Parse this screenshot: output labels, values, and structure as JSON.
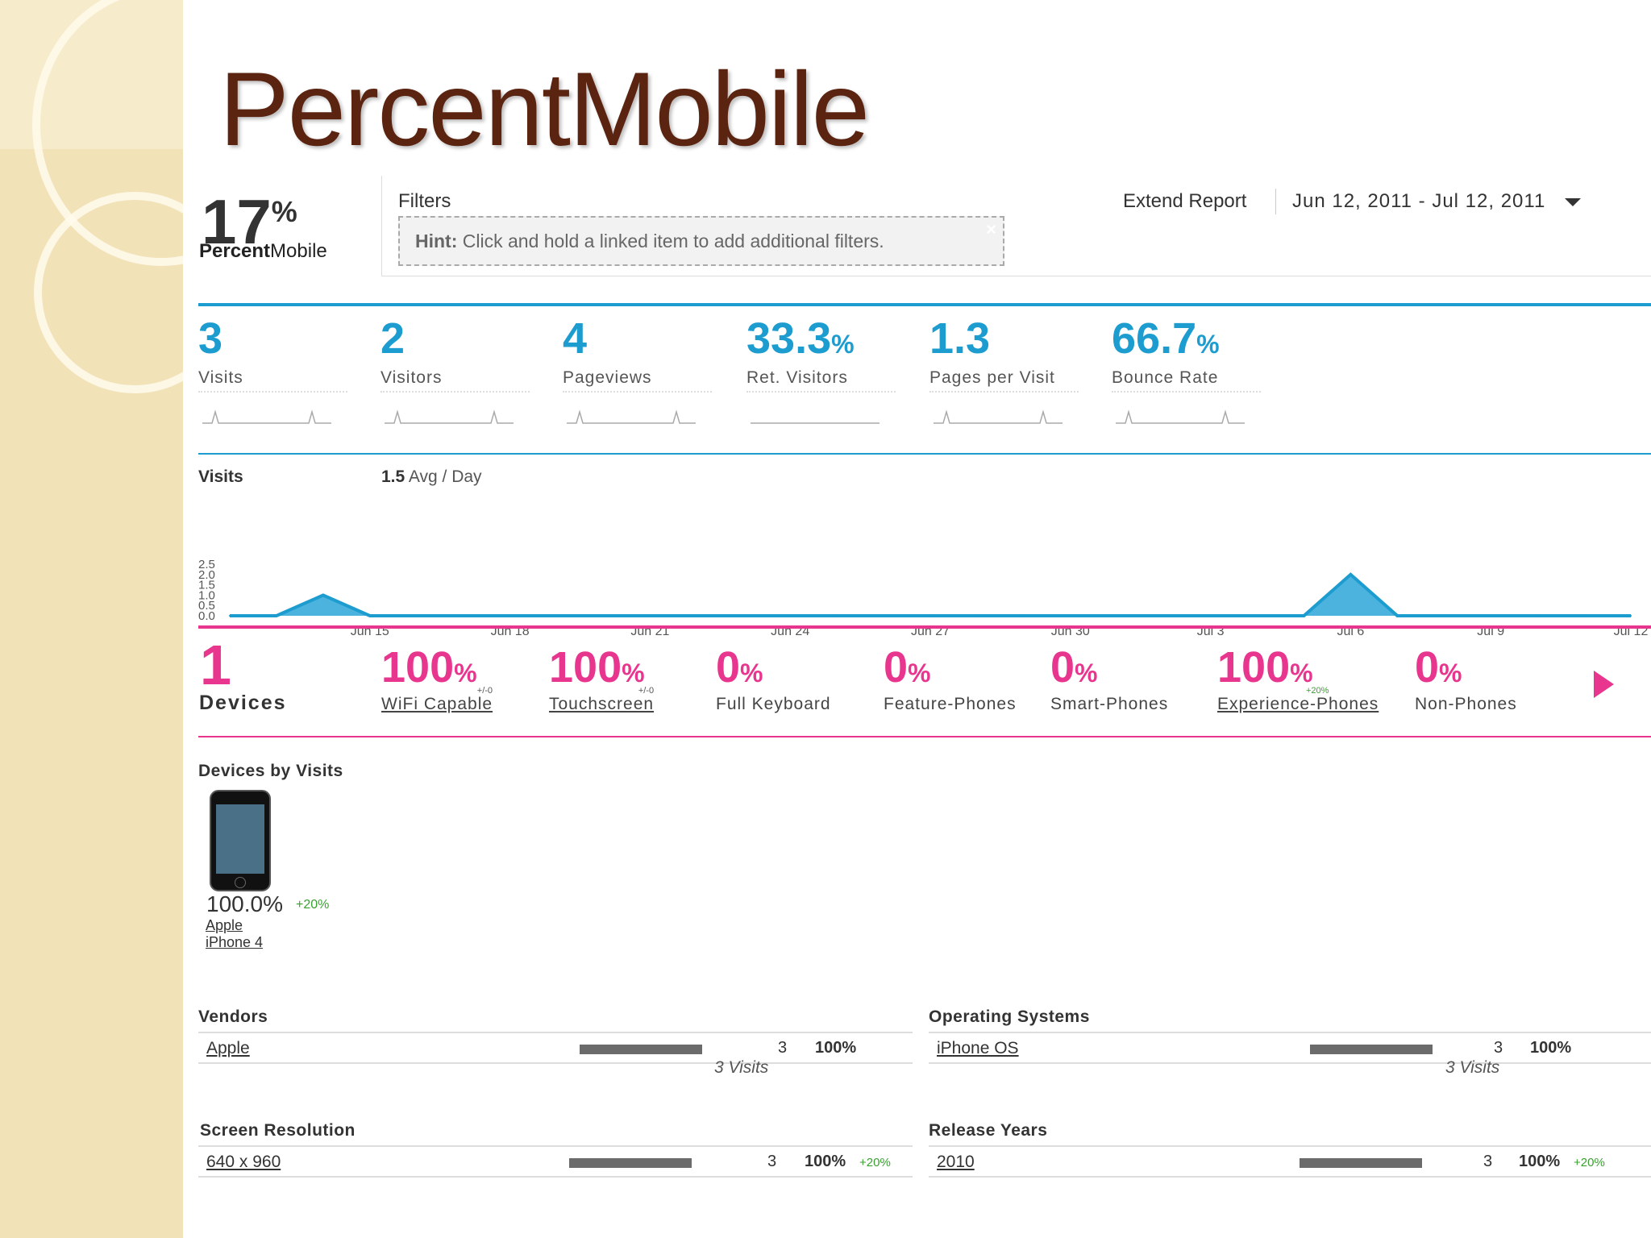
{
  "slide_title": "PercentMobile",
  "brand": {
    "percent": "17",
    "percent_sign": "%",
    "name_bold": "Percent",
    "name_rest": "Mobile"
  },
  "filters": {
    "label": "Filters",
    "hint_bold": "Hint:",
    "hint_text": "Click and hold a linked item to add additional filters.",
    "close": "×"
  },
  "header": {
    "extend_report": "Extend Report",
    "date_range": "Jun 12, 2011 - Jul 12, 2011"
  },
  "metrics": [
    {
      "value": "3",
      "unit": "",
      "label": "Visits"
    },
    {
      "value": "2",
      "unit": "",
      "label": "Visitors"
    },
    {
      "value": "4",
      "unit": "",
      "label": "Pageviews"
    },
    {
      "value": "33.3",
      "unit": "%",
      "label": "Ret. Visitors"
    },
    {
      "value": "1.3",
      "unit": "",
      "label": "Pages per Visit"
    },
    {
      "value": "66.7",
      "unit": "%",
      "label": "Bounce Rate"
    }
  ],
  "visits_chart": {
    "title": "Visits",
    "avg_value": "1.5",
    "avg_label": "Avg / Day"
  },
  "chart_data": {
    "type": "area",
    "title": "Visits",
    "y_ticks": [
      "2.5",
      "2.0",
      "1.5",
      "1.0",
      "0.5",
      "0.0"
    ],
    "ylim": [
      0,
      2.5
    ],
    "x_ticks": [
      {
        "label": "Jun 15",
        "day": 3
      },
      {
        "label": "Jun 18",
        "day": 6
      },
      {
        "label": "Jun 21",
        "day": 9
      },
      {
        "label": "Jun 24",
        "day": 12
      },
      {
        "label": "Jun 27",
        "day": 15
      },
      {
        "label": "Jun 30",
        "day": 18
      },
      {
        "label": "Jul 3",
        "day": 21
      },
      {
        "label": "Jul 6",
        "day": 24
      },
      {
        "label": "Jul 9",
        "day": 27
      },
      {
        "label": "Jul 12",
        "day": 30
      }
    ],
    "x": [
      0,
      1,
      2,
      3,
      4,
      5,
      6,
      7,
      8,
      9,
      10,
      11,
      12,
      13,
      14,
      15,
      16,
      17,
      18,
      19,
      20,
      21,
      22,
      23,
      24,
      25,
      26,
      27,
      28,
      29,
      30
    ],
    "values": [
      0,
      0,
      1,
      0,
      0,
      0,
      0,
      0,
      0,
      0,
      0,
      0,
      0,
      0,
      0,
      0,
      0,
      0,
      0,
      0,
      0,
      0,
      0,
      0,
      2,
      0,
      0,
      0,
      0,
      0,
      0
    ],
    "grid": false,
    "color": "#1c9ccf"
  },
  "devices": {
    "count": "1",
    "label": "Devices",
    "metrics": [
      {
        "value": "100",
        "unit": "%",
        "label": "WiFi Capable",
        "change": "+/-0",
        "link": true,
        "green": false
      },
      {
        "value": "100",
        "unit": "%",
        "label": "Touchscreen",
        "change": "+/-0",
        "link": true,
        "green": false
      },
      {
        "value": "0",
        "unit": "%",
        "label": "Full Keyboard",
        "change": "",
        "link": false,
        "green": false
      },
      {
        "value": "0",
        "unit": "%",
        "label": "Feature-Phones",
        "change": "",
        "link": false,
        "green": false
      },
      {
        "value": "0",
        "unit": "%",
        "label": "Smart-Phones",
        "change": "",
        "link": false,
        "green": false
      },
      {
        "value": "100",
        "unit": "%",
        "label": "Experience-Phones",
        "change": "+20%",
        "link": true,
        "green": true
      },
      {
        "value": "0",
        "unit": "%",
        "label": "Non-Phones",
        "change": "",
        "link": false,
        "green": false
      }
    ]
  },
  "devices_by_visits": {
    "title": "Devices by Visits",
    "device": {
      "percent": "100.0%",
      "change": "+20%",
      "vendor": "Apple",
      "model": "iPhone 4"
    }
  },
  "tables": {
    "vendors": {
      "title": "Vendors",
      "row": {
        "name": "Apple",
        "count": "3",
        "percent": "100%",
        "change": "",
        "share": 1.0
      },
      "footer": "3 Visits"
    },
    "operating_systems": {
      "title": "Operating Systems",
      "row": {
        "name": "iPhone OS",
        "count": "3",
        "percent": "100%",
        "change": "",
        "share": 1.0
      },
      "footer": "3 Visits"
    },
    "screen_resolution": {
      "title": "Screen Resolution",
      "row": {
        "name": "640 x 960",
        "count": "3",
        "percent": "100%",
        "change": "+20%",
        "share": 1.0
      }
    },
    "release_years": {
      "title": "Release Years",
      "row": {
        "name": "2010",
        "count": "3",
        "percent": "100%",
        "change": "+20%",
        "share": 1.0
      }
    }
  },
  "colors": {
    "visits_accent": "#1c9ccf",
    "devices_accent": "#e8368f",
    "title_brown": "#5a2411",
    "positive_change": "#3aa030"
  }
}
